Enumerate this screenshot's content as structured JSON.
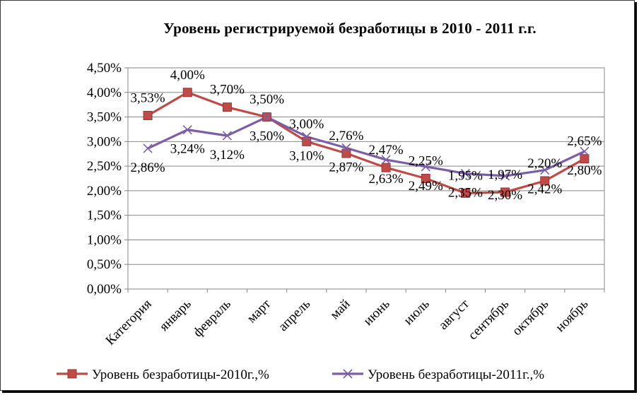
{
  "chart_data": {
    "type": "line",
    "title": "Уровень регистрируемой безработицы в 2010 - 2011 г.г.",
    "categories": [
      "Категория",
      "январь",
      "февраль",
      "март",
      "апрель",
      "май",
      "июнь",
      "июль",
      "август",
      "сентябрь",
      "октябрь",
      "ноябрь"
    ],
    "ylim": [
      0,
      4.5
    ],
    "yticks": [
      "0,00%",
      "0,50%",
      "1,00%",
      "1,50%",
      "2,00%",
      "2,50%",
      "3,00%",
      "3,50%",
      "4,00%",
      "4,50%"
    ],
    "grid": true,
    "legend_position": "bottom",
    "series": [
      {
        "name": "Уровень безработицы-2010г.,%",
        "color": "#be4b48",
        "marker": "square",
        "values": [
          3.53,
          4.0,
          3.7,
          3.5,
          3.0,
          2.76,
          2.47,
          2.25,
          1.95,
          1.97,
          2.2,
          2.65
        ],
        "labels": [
          "3,53%",
          "4,00%",
          "3,70%",
          "3,50%",
          "3,00%",
          "2,76%",
          "2,47%",
          "2,25%",
          "1,95%",
          "1,97%",
          "2,20%",
          "2,65%"
        ]
      },
      {
        "name": "Уровень безработицы-2011г.,%",
        "color": "#7b5ea7",
        "marker": "x",
        "values": [
          2.86,
          3.24,
          3.12,
          3.5,
          3.1,
          2.87,
          2.63,
          2.49,
          2.35,
          2.3,
          2.42,
          2.8
        ],
        "labels": [
          "2,86%",
          "3,24%",
          "3,12%",
          "3,50%",
          "3,10%",
          "2,87%",
          "2,63%",
          "2,49%",
          "2,35%",
          "2,30%",
          "2,42%",
          "2,80%"
        ]
      }
    ]
  }
}
